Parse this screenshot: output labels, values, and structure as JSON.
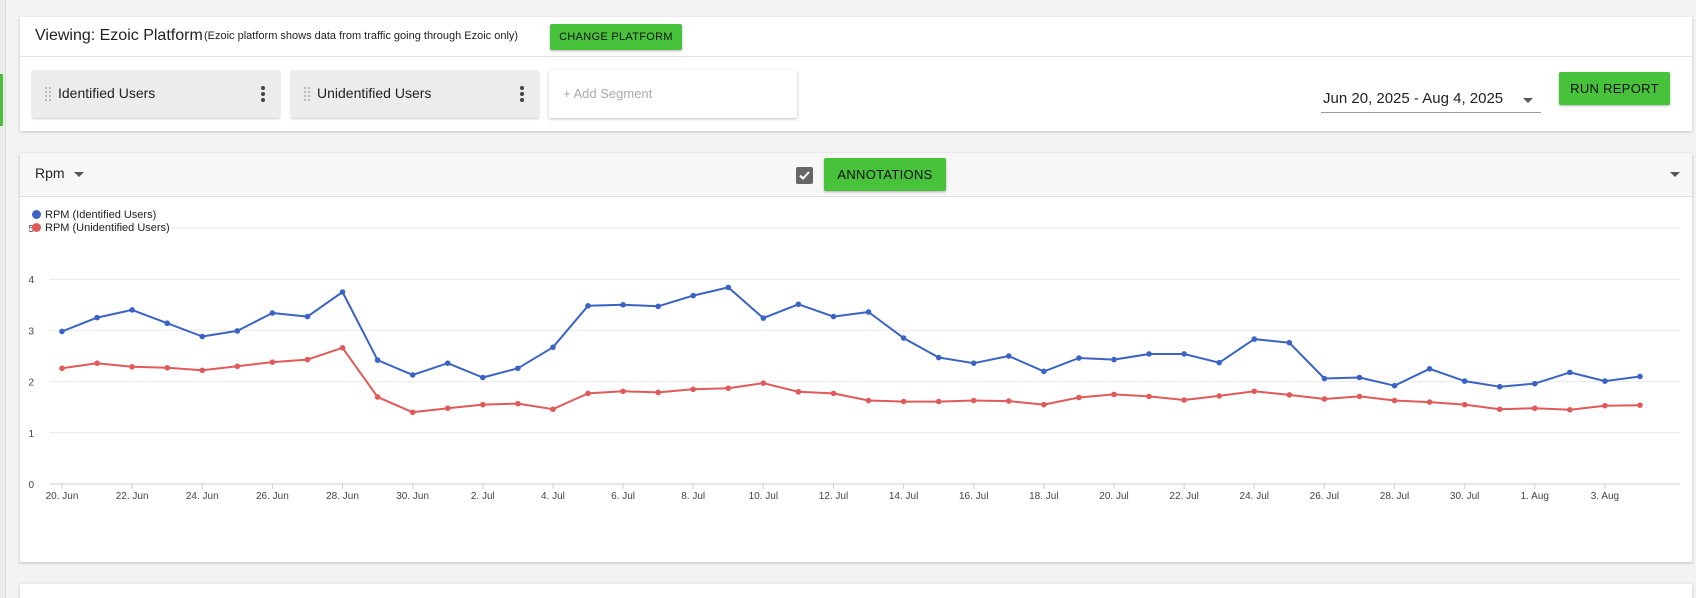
{
  "header": {
    "viewing_label": "Viewing: Ezoic Platform",
    "viewing_note": "(Ezoic platform shows data from traffic going through Ezoic only)",
    "change_platform_label": "CHANGE PLATFORM"
  },
  "segments": {
    "items": [
      {
        "label": "Identified Users"
      },
      {
        "label": "Unidentified Users"
      }
    ],
    "add_label": "+ Add Segment"
  },
  "date_range": "Jun 20, 2025 - Aug 4, 2025",
  "run_report_label": "RUN REPORT",
  "chart_header": {
    "metric": "Rpm",
    "annotations_checked": true,
    "annotations_label": "ANNOTATIONS"
  },
  "colors": {
    "accent_green": "#49c23b",
    "series_identified": "#3a63c4",
    "series_unidentified": "#e05a5a"
  },
  "chart_data": {
    "type": "line",
    "title": "",
    "xlabel": "",
    "ylabel": "",
    "ylim": [
      0,
      5
    ],
    "yticks": [
      0,
      1,
      2,
      3,
      4,
      5
    ],
    "grid": true,
    "legend_position": "top-left",
    "x": [
      "20. Jun",
      "21. Jun",
      "22. Jun",
      "23. Jun",
      "24. Jun",
      "25. Jun",
      "26. Jun",
      "27. Jun",
      "28. Jun",
      "29. Jun",
      "30. Jun",
      "1. Jul",
      "2. Jul",
      "3. Jul",
      "4. Jul",
      "5. Jul",
      "6. Jul",
      "7. Jul",
      "8. Jul",
      "9. Jul",
      "10. Jul",
      "11. Jul",
      "12. Jul",
      "13. Jul",
      "14. Jul",
      "15. Jul",
      "16. Jul",
      "17. Jul",
      "18. Jul",
      "19. Jul",
      "20. Jul",
      "21. Jul",
      "22. Jul",
      "23. Jul",
      "24. Jul",
      "25. Jul",
      "26. Jul",
      "27. Jul",
      "28. Jul",
      "29. Jul",
      "30. Jul",
      "31. Jul",
      "1. Aug",
      "2. Aug",
      "3. Aug",
      "4. Aug"
    ],
    "xtick_labels": [
      "20. Jun",
      "22. Jun",
      "24. Jun",
      "26. Jun",
      "28. Jun",
      "30. Jun",
      "2. Jul",
      "4. Jul",
      "6. Jul",
      "8. Jul",
      "10. Jul",
      "12. Jul",
      "14. Jul",
      "16. Jul",
      "18. Jul",
      "20. Jul",
      "22. Jul",
      "24. Jul",
      "26. Jul",
      "28. Jul",
      "30. Jul",
      "1. Aug",
      "3. Aug"
    ],
    "series": [
      {
        "name": "RPM (Identified Users)",
        "color": "#3a63c4",
        "values": [
          2.98,
          3.25,
          3.4,
          3.14,
          2.88,
          2.99,
          3.34,
          3.27,
          3.75,
          2.42,
          2.13,
          2.36,
          2.08,
          2.26,
          2.67,
          3.48,
          3.5,
          3.47,
          3.68,
          3.84,
          3.24,
          3.51,
          3.27,
          3.36,
          2.85,
          2.47,
          2.36,
          2.5,
          2.2,
          2.46,
          2.43,
          2.54,
          2.54,
          2.37,
          2.83,
          2.76,
          2.06,
          2.08,
          1.92,
          2.25,
          2.01,
          1.9,
          1.96,
          2.18,
          2.01,
          2.1
        ]
      },
      {
        "name": "RPM (Unidentified Users)",
        "color": "#e05a5a",
        "values": [
          2.26,
          2.36,
          2.29,
          2.27,
          2.22,
          2.3,
          2.38,
          2.43,
          2.66,
          1.7,
          1.4,
          1.48,
          1.55,
          1.57,
          1.46,
          1.77,
          1.81,
          1.79,
          1.85,
          1.87,
          1.97,
          1.8,
          1.77,
          1.63,
          1.61,
          1.61,
          1.63,
          1.62,
          1.55,
          1.69,
          1.75,
          1.71,
          1.64,
          1.72,
          1.81,
          1.74,
          1.66,
          1.71,
          1.63,
          1.6,
          1.55,
          1.46,
          1.48,
          1.45,
          1.53,
          1.54
        ]
      }
    ]
  }
}
